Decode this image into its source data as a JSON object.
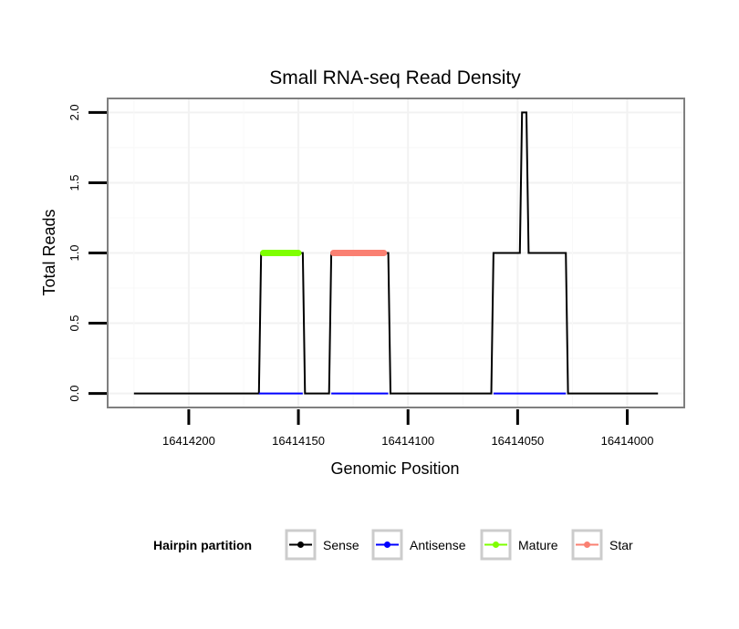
{
  "chart_data": {
    "type": "line",
    "title": "Small RNA-seq Read Density",
    "xlabel": "Genomic Position",
    "ylabel": "Total Reads",
    "x_reversed": true,
    "xlim": [
      16414237,
      16413974
    ],
    "ylim": [
      -0.1,
      2.1
    ],
    "x_ticks": [
      16414200,
      16414150,
      16414100,
      16414050,
      16414000
    ],
    "x_tick_labels": [
      "16414200",
      "16414150",
      "16414100",
      "16414050",
      "16414000"
    ],
    "y_ticks": [
      0.0,
      0.5,
      1.0,
      1.5,
      2.0
    ],
    "y_tick_labels": [
      "0.0",
      "0.5",
      "1.0",
      "1.5",
      "2.0"
    ],
    "grid": true,
    "legend": {
      "title": "Hairpin partition",
      "position": "bottom",
      "entries": [
        {
          "label": "Sense",
          "color": "#000000"
        },
        {
          "label": "Antisense",
          "color": "#0000FF"
        },
        {
          "label": "Mature",
          "color": "#7FFF00"
        },
        {
          "label": "Star",
          "color": "#FA8072"
        }
      ]
    },
    "series": [
      {
        "name": "Sense",
        "color": "#000000",
        "x": [
          16414225,
          16414168,
          16414167,
          16414148,
          16414147,
          16414136,
          16414135,
          16414109,
          16414108,
          16414062,
          16414061,
          16414049,
          16414048,
          16414046,
          16414045,
          16414044,
          16414043,
          16414028,
          16414027,
          16413986
        ],
        "values": [
          0,
          0,
          1,
          1,
          0,
          0,
          1,
          1,
          0,
          0,
          1,
          1,
          2,
          2,
          1,
          1,
          1,
          1,
          0,
          0
        ]
      },
      {
        "name": "Antisense",
        "color": "#0000FF",
        "x": [
          16414168,
          16414148,
          16414135,
          16414109,
          16414061,
          16414028
        ],
        "values": [
          0,
          0,
          0,
          0,
          0,
          0
        ],
        "segments": [
          [
            16414168,
            16414148
          ],
          [
            16414135,
            16414109
          ],
          [
            16414061,
            16414028
          ]
        ]
      },
      {
        "name": "Mature",
        "color": "#7FFF00",
        "x": [
          16414166,
          16414150
        ],
        "values": [
          1,
          1
        ]
      },
      {
        "name": "Star",
        "color": "#FA8072",
        "x": [
          16414134,
          16414111
        ],
        "values": [
          1,
          1
        ]
      }
    ]
  }
}
